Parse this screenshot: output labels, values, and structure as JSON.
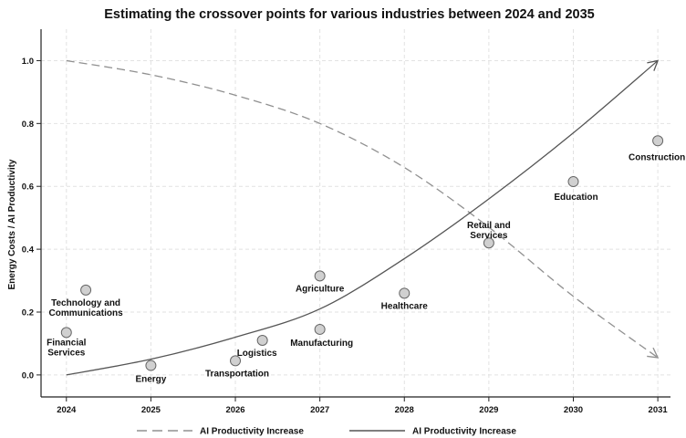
{
  "chart_data": {
    "type": "scatter",
    "title": "Estimating the crossover points for various industries between 2024 and 2035",
    "xlabel": "",
    "ylabel": "Energy Costs / AI Productivity",
    "xlim": [
      2023.7,
      2031.15
    ],
    "ylim": [
      -0.07,
      1.1
    ],
    "x_ticks": [
      "2024",
      "2025",
      "2026",
      "2027",
      "2028",
      "2029",
      "2030",
      "2031"
    ],
    "y_ticks": [
      "0.0",
      "0.2",
      "0.4",
      "0.6",
      "0.8",
      "1.0"
    ],
    "grid": true,
    "legend_position": "bottom",
    "points": [
      {
        "label": "Technology and\nCommunications",
        "x": 2024.23,
        "y": 0.27
      },
      {
        "label": "Financial\nServices",
        "x": 2024.0,
        "y": 0.135
      },
      {
        "label": "Energy",
        "x": 2025.0,
        "y": 0.03
      },
      {
        "label": "Transportation",
        "x": 2026.0,
        "y": 0.045
      },
      {
        "label": "Logistics",
        "x": 2026.32,
        "y": 0.11
      },
      {
        "label": "Agriculture",
        "x": 2027.0,
        "y": 0.315
      },
      {
        "label": "Manufacturing",
        "x": 2027.0,
        "y": 0.145
      },
      {
        "label": "Healthcare",
        "x": 2028.0,
        "y": 0.26
      },
      {
        "label": "Retail and\nServices",
        "x": 2029.0,
        "y": 0.42
      },
      {
        "label": "Education",
        "x": 2030.0,
        "y": 0.615
      },
      {
        "label": "Construction",
        "x": 2031.0,
        "y": 0.745
      }
    ],
    "series": [
      {
        "name": "AI Productivity Increase",
        "style": "dashed",
        "color": "#909090",
        "x": [
          2024,
          2025,
          2026,
          2027,
          2028,
          2029,
          2030,
          2031
        ],
        "y": [
          1.0,
          0.955,
          0.89,
          0.8,
          0.66,
          0.47,
          0.25,
          0.055
        ]
      },
      {
        "name": "AI Productivity Increase",
        "style": "solid",
        "color": "#555555",
        "x": [
          2024,
          2025,
          2026,
          2027,
          2028,
          2029,
          2030,
          2031
        ],
        "y": [
          0.0,
          0.05,
          0.12,
          0.21,
          0.37,
          0.56,
          0.77,
          1.0
        ]
      }
    ],
    "point_color": "#d0d0d0"
  }
}
